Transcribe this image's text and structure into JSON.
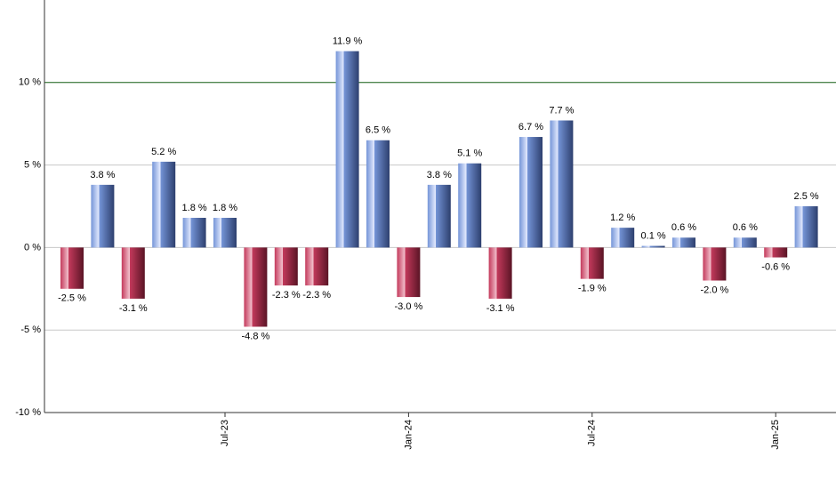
{
  "chart_data": {
    "type": "bar",
    "categories": [
      null,
      null,
      null,
      null,
      null,
      "Jul-23",
      null,
      null,
      null,
      null,
      null,
      "Jan-24",
      null,
      null,
      null,
      null,
      null,
      "Jul-24",
      null,
      null,
      null,
      null,
      null,
      "Jan-25",
      null
    ],
    "values": [
      -2.5,
      3.8,
      -3.1,
      5.2,
      1.8,
      1.8,
      -4.8,
      -2.3,
      -2.3,
      11.9,
      6.5,
      -3.0,
      3.8,
      5.1,
      -3.1,
      6.7,
      7.7,
      -1.9,
      1.2,
      0.1,
      0.6,
      -2.0,
      0.6,
      -0.6,
      2.5
    ],
    "value_labels": [
      "-2.5 %",
      "3.8 %",
      "-3.1 %",
      "5.2 %",
      "1.8 %",
      "1.8 %",
      "-4.8 %",
      "-2.3 %",
      "-2.3 %",
      "11.9 %",
      "6.5 %",
      "-3.0 %",
      "3.8 %",
      "5.1 %",
      "-3.1 %",
      "6.7 %",
      "7.7 %",
      "-1.9 %",
      "1.2 %",
      "0.1 %",
      "0.6 %",
      "-2.0 %",
      "0.6 %",
      "-0.6 %",
      "2.5 %"
    ],
    "positive_color": "#7595d8",
    "negative_color": "#c43a5c",
    "ylim": [
      -10,
      15
    ],
    "yticks": [
      {
        "value": -10,
        "label": "-10 %"
      },
      {
        "value": -5,
        "label": "-5 %"
      },
      {
        "value": 0,
        "label": "0 %"
      },
      {
        "value": 5,
        "label": "5 %"
      },
      {
        "value": 10,
        "label": "10 %"
      }
    ],
    "grid": true,
    "reference_line": {
      "value": 10,
      "color": "#1f6b1f"
    }
  }
}
